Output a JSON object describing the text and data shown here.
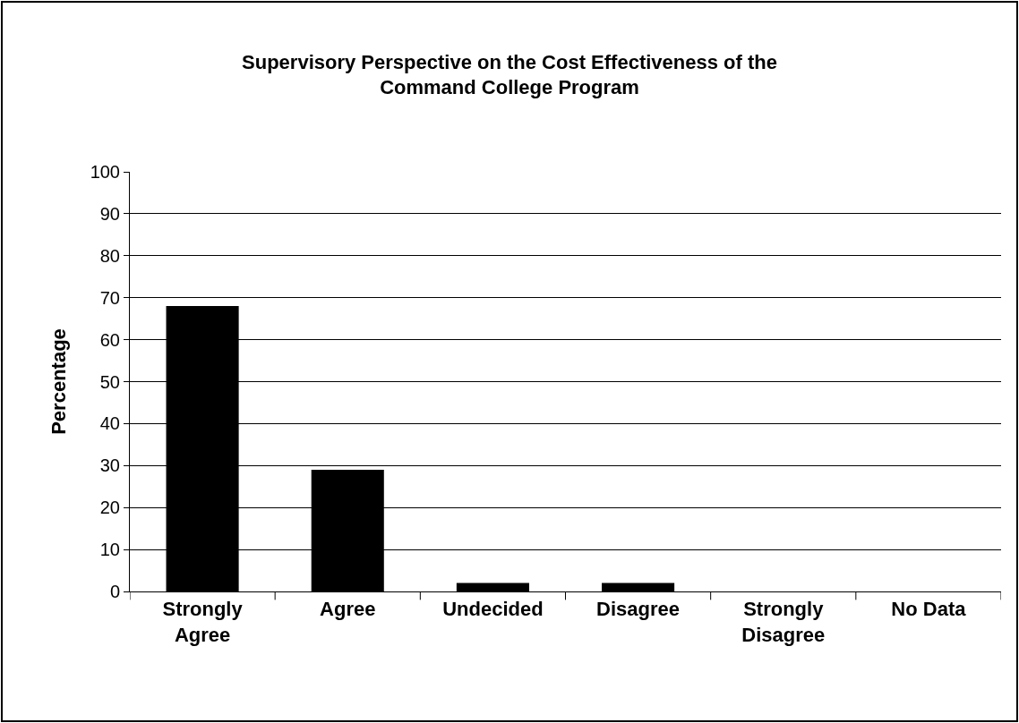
{
  "chart_data": {
    "type": "bar",
    "title": "Supervisory Perspective on the Cost Effectiveness of the Command College Program",
    "ylabel": "Percentage",
    "categories": [
      "Strongly Agree",
      "Agree",
      "Undecided",
      "Disagree",
      "Strongly Disagree",
      "No Data"
    ],
    "values": [
      68,
      29,
      2,
      2,
      0,
      0
    ],
    "color": "#000000",
    "ylim": [
      0,
      100
    ],
    "yticks": [
      0,
      10,
      20,
      30,
      40,
      50,
      60,
      70,
      80,
      90,
      100
    ],
    "grid": "y",
    "legend": false
  }
}
